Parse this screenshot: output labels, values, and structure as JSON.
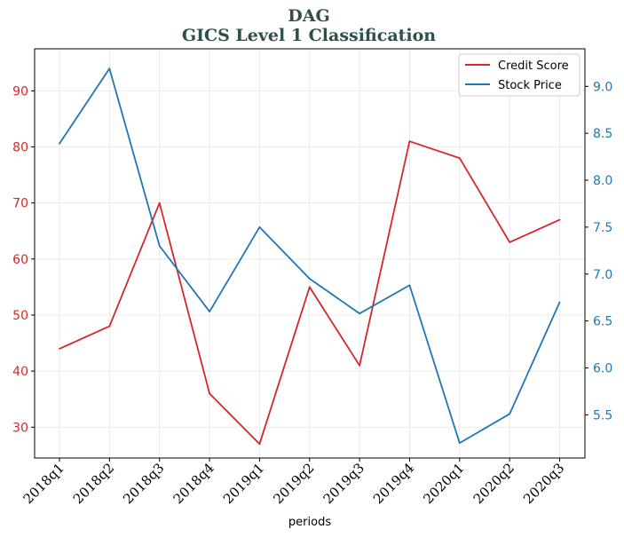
{
  "chart_data": {
    "type": "line",
    "title": "DAG",
    "subtitle": "GICS Level 1 Classification",
    "xlabel": "periods",
    "categories": [
      "2018q1",
      "2018q2",
      "2018q3",
      "2018q4",
      "2019q1",
      "2019q2",
      "2019q3",
      "2019q4",
      "2020q1",
      "2020q2",
      "2020q3"
    ],
    "series": [
      {
        "name": "Credit Score",
        "axis": "left",
        "color": "#d62728",
        "values": [
          44,
          48,
          70,
          36,
          27,
          55,
          41,
          81,
          78,
          63,
          67
        ]
      },
      {
        "name": "Stock Price",
        "axis": "right",
        "color": "#1f77b4",
        "values": [
          8.39,
          9.19,
          7.3,
          6.6,
          7.5,
          6.95,
          6.58,
          6.88,
          5.2,
          5.51,
          6.7
        ]
      }
    ],
    "y_left": {
      "ylim": [
        24.5,
        97.5
      ],
      "ticks": [
        30,
        40,
        50,
        60,
        70,
        80,
        90
      ],
      "color": "#d62728"
    },
    "y_right": {
      "ylim": [
        5.04,
        9.4
      ],
      "ticks": [
        5.5,
        6.0,
        6.5,
        7.0,
        7.5,
        8.0,
        8.5,
        9.0
      ],
      "tick_labels": [
        "5.5",
        "6.0",
        "6.5",
        "7.0",
        "7.5",
        "8.0",
        "8.5",
        "9.0"
      ],
      "color": "#1f77b4"
    },
    "grid": true,
    "legend_position": "top-right"
  }
}
